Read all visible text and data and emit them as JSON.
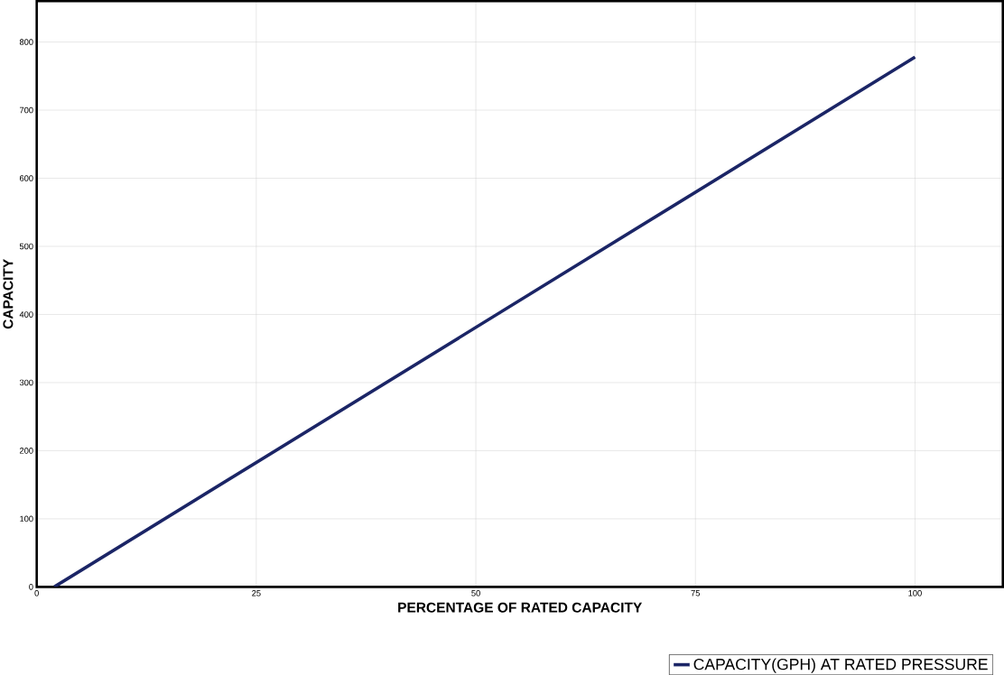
{
  "chart_data": {
    "type": "line",
    "xlabel": "PERCENTAGE OF RATED CAPACITY",
    "ylabel": "CAPACITY",
    "series": [
      {
        "name": "CAPACITY(GPH) AT RATED PRESSURE",
        "color": "#1b2566",
        "x": [
          2,
          100
        ],
        "values": [
          0,
          778
        ]
      }
    ],
    "xlim": [
      0,
      110
    ],
    "ylim": [
      0,
      860
    ],
    "xticks": [
      0,
      25,
      50,
      75,
      100
    ],
    "yticks": [
      0,
      100,
      200,
      300,
      400,
      500,
      600,
      700,
      800
    ],
    "grid": true,
    "legend": "bottom",
    "marker": "none",
    "line_style": "solid"
  }
}
